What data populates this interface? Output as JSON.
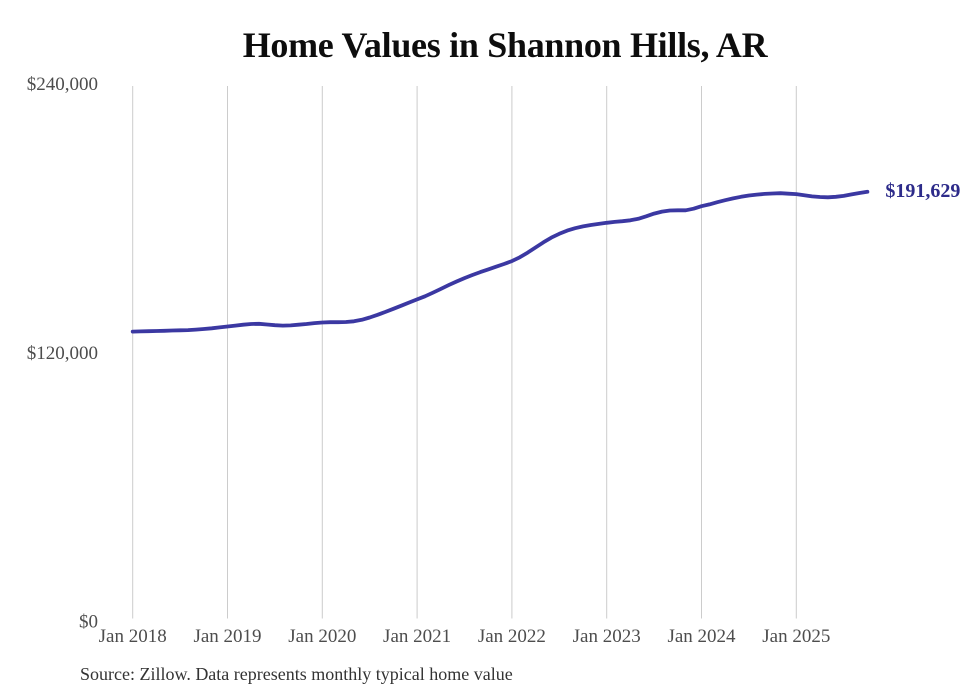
{
  "page": {
    "background": "#ffffff"
  },
  "chart_data": {
    "type": "line",
    "title": "Home Values in Shannon Hills, AR",
    "xlabel": "",
    "ylabel": "",
    "ylim": [
      0,
      240000
    ],
    "grid": "vertical-only",
    "legend": "none",
    "end_label": "$191,629",
    "final_value": 191629,
    "colors": {
      "line": "#3b38a2",
      "end_label": "#2d2b8a",
      "gridline": "#cccccc",
      "tick_text": "#4d4d4d",
      "title_text": "#0d0d0d",
      "source_text": "#333333"
    },
    "y_ticks": [
      {
        "value": 0,
        "label": "$0"
      },
      {
        "value": 120000,
        "label": "$120,000"
      },
      {
        "value": 240000,
        "label": "$240,000"
      }
    ],
    "x_ticks": [
      "Jan 2018",
      "Jan 2019",
      "Jan 2020",
      "Jan 2021",
      "Jan 2022",
      "Jan 2023",
      "Jan 2024",
      "Jan 2025"
    ],
    "x_tick_month_indices": [
      0,
      12,
      24,
      36,
      48,
      60,
      72,
      84
    ],
    "series": [
      {
        "name": "Monthly typical home value",
        "months": [
          "2018-01",
          "2018-02",
          "2018-03",
          "2018-04",
          "2018-05",
          "2018-06",
          "2018-07",
          "2018-08",
          "2018-09",
          "2018-10",
          "2018-11",
          "2018-12",
          "2019-01",
          "2019-02",
          "2019-03",
          "2019-04",
          "2019-05",
          "2019-06",
          "2019-07",
          "2019-08",
          "2019-09",
          "2019-10",
          "2019-11",
          "2019-12",
          "2020-01",
          "2020-02",
          "2020-03",
          "2020-04",
          "2020-05",
          "2020-06",
          "2020-07",
          "2020-08",
          "2020-09",
          "2020-10",
          "2020-11",
          "2020-12",
          "2021-01",
          "2021-02",
          "2021-03",
          "2021-04",
          "2021-05",
          "2021-06",
          "2021-07",
          "2021-08",
          "2021-09",
          "2021-10",
          "2021-11",
          "2021-12",
          "2022-01",
          "2022-02",
          "2022-03",
          "2022-04",
          "2022-05",
          "2022-06",
          "2022-07",
          "2022-08",
          "2022-09",
          "2022-10",
          "2022-11",
          "2022-12",
          "2023-01",
          "2023-02",
          "2023-03",
          "2023-04",
          "2023-05",
          "2023-06",
          "2023-07",
          "2023-08",
          "2023-09",
          "2023-10",
          "2023-11",
          "2023-12",
          "2024-01",
          "2024-02",
          "2024-03",
          "2024-04",
          "2024-05",
          "2024-06",
          "2024-07",
          "2024-08",
          "2024-09",
          "2024-10",
          "2024-11",
          "2024-12",
          "2025-01",
          "2025-02",
          "2025-03",
          "2025-04",
          "2025-05",
          "2025-06",
          "2025-07",
          "2025-08",
          "2025-09",
          "2025-10"
        ],
        "values": [
          129200,
          129300,
          129400,
          129500,
          129600,
          129700,
          129800,
          129900,
          130100,
          130400,
          130700,
          131100,
          131500,
          131900,
          132300,
          132600,
          132700,
          132400,
          132100,
          131900,
          132000,
          132300,
          132600,
          133000,
          133300,
          133400,
          133400,
          133500,
          133800,
          134500,
          135500,
          136700,
          138000,
          139400,
          140800,
          142200,
          143600,
          145000,
          146600,
          148300,
          150000,
          151600,
          153100,
          154500,
          155800,
          157000,
          158200,
          159400,
          160700,
          162400,
          164500,
          166800,
          169100,
          171200,
          172900,
          174300,
          175400,
          176200,
          176800,
          177300,
          177800,
          178200,
          178500,
          178900,
          179600,
          180700,
          181900,
          182800,
          183300,
          183400,
          183400,
          184100,
          185200,
          186000,
          187000,
          187900,
          188700,
          189400,
          190000,
          190400,
          190700,
          190900,
          191000,
          190800,
          190600,
          190100,
          189600,
          189300,
          189200,
          189400,
          189800,
          190500,
          191100,
          191629
        ]
      }
    ]
  },
  "footer": {
    "source": "Source: Zillow. Data represents monthly typical home value"
  }
}
